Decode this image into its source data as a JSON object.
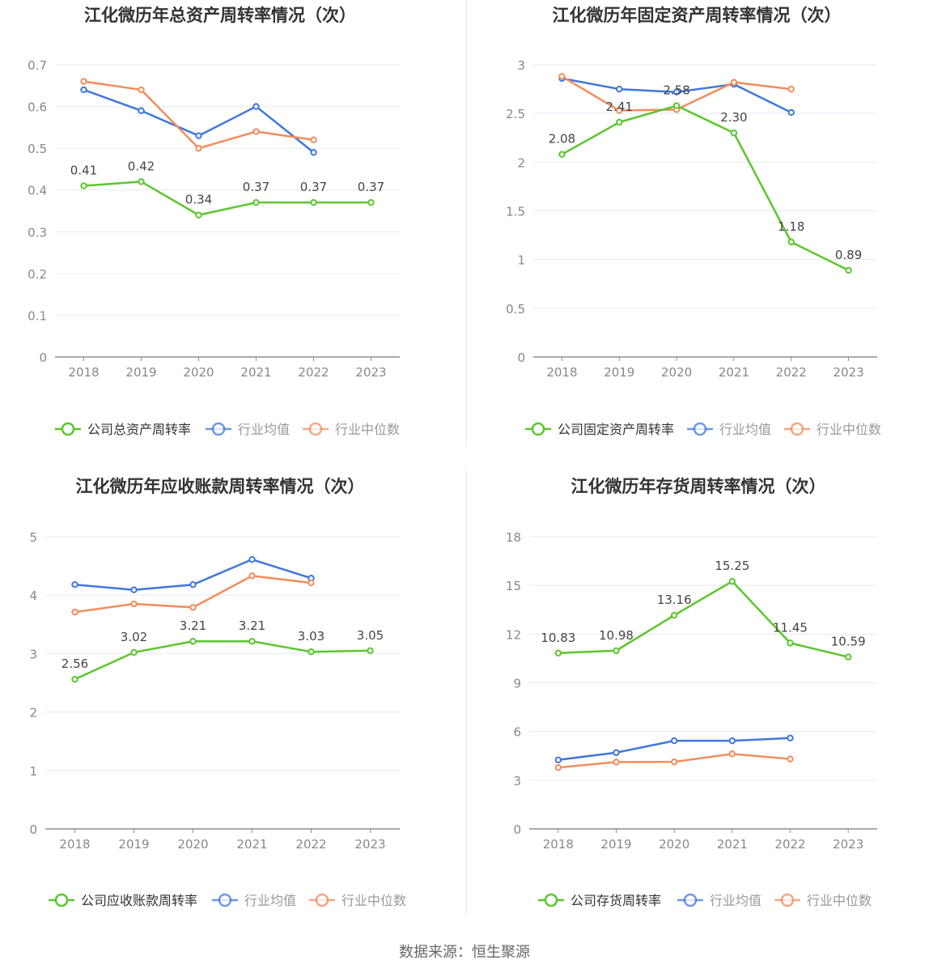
{
  "source_label": "数据来源：恒生聚源",
  "colors": {
    "company": "#5bc62e",
    "avg": "#3f77dd",
    "median": "#f28c5c",
    "grid": "#e6e9f0",
    "axis": "#8e8e9c"
  },
  "chart_data": [
    {
      "type": "line",
      "title": "江化微历年总资产周转率情况（次）",
      "categories": [
        "2018",
        "2019",
        "2020",
        "2021",
        "2022",
        "2023"
      ],
      "yticks": [
        "0",
        "0.1",
        "0.2",
        "0.3",
        "0.4",
        "0.5",
        "0.6",
        "0.7"
      ],
      "ylim": [
        0,
        0.7
      ],
      "series": [
        {
          "name": "公司总资产周转率",
          "color": "#5bc62e",
          "values": [
            0.41,
            0.42,
            0.34,
            0.37,
            0.37,
            0.37
          ],
          "labels": [
            "0.41",
            "0.42",
            "0.34",
            "0.37",
            "0.37",
            "0.37"
          ]
        },
        {
          "name": "行业均值",
          "color": "#3f77dd",
          "values": [
            0.64,
            0.59,
            0.53,
            0.6,
            0.49,
            null
          ]
        },
        {
          "name": "行业中位数",
          "color": "#f28c5c",
          "values": [
            0.66,
            0.64,
            0.5,
            0.54,
            0.52,
            null
          ]
        }
      ]
    },
    {
      "type": "line",
      "title": "江化微历年固定资产周转率情况（次）",
      "categories": [
        "2018",
        "2019",
        "2020",
        "2021",
        "2022",
        "2023"
      ],
      "yticks": [
        "0",
        "0.5",
        "1",
        "1.5",
        "2",
        "2.5",
        "3"
      ],
      "ylim": [
        0,
        3
      ],
      "series": [
        {
          "name": "公司固定资产周转率",
          "color": "#5bc62e",
          "values": [
            2.08,
            2.41,
            2.58,
            2.3,
            1.18,
            0.89
          ],
          "labels": [
            "2.08",
            "2.41",
            "2.58",
            "2.30",
            "1.18",
            "0.89"
          ]
        },
        {
          "name": "行业均值",
          "color": "#3f77dd",
          "values": [
            2.86,
            2.75,
            2.72,
            2.8,
            2.51,
            null
          ]
        },
        {
          "name": "行业中位数",
          "color": "#f28c5c",
          "values": [
            2.88,
            2.53,
            2.54,
            2.82,
            2.75,
            null
          ]
        }
      ]
    },
    {
      "type": "line",
      "title": "江化微历年应收账款周转率情况（次）",
      "categories": [
        "2018",
        "2019",
        "2020",
        "2021",
        "2022",
        "2023"
      ],
      "yticks": [
        "0",
        "1",
        "2",
        "3",
        "4",
        "5"
      ],
      "ylim": [
        0,
        5
      ],
      "series": [
        {
          "name": "公司应收账款周转率",
          "color": "#5bc62e",
          "values": [
            2.56,
            3.02,
            3.21,
            3.21,
            3.03,
            3.05
          ],
          "labels": [
            "2.56",
            "3.02",
            "3.21",
            "3.21",
            "3.03",
            "3.05"
          ]
        },
        {
          "name": "行业均值",
          "color": "#3f77dd",
          "values": [
            4.18,
            4.09,
            4.18,
            4.61,
            4.29,
            null
          ]
        },
        {
          "name": "行业中位数",
          "color": "#f28c5c",
          "values": [
            3.71,
            3.85,
            3.79,
            4.33,
            4.21,
            null
          ]
        }
      ]
    },
    {
      "type": "line",
      "title": "江化微历年存货周转率情况（次）",
      "categories": [
        "2018",
        "2019",
        "2020",
        "2021",
        "2022",
        "2023"
      ],
      "yticks": [
        "0",
        "3",
        "6",
        "9",
        "12",
        "15",
        "18"
      ],
      "ylim": [
        0,
        18
      ],
      "series": [
        {
          "name": "公司存货周转率",
          "color": "#5bc62e",
          "values": [
            10.83,
            10.98,
            13.16,
            15.25,
            11.45,
            10.59
          ],
          "labels": [
            "10.83",
            "10.98",
            "13.16",
            "15.25",
            "11.45",
            "10.59"
          ]
        },
        {
          "name": "行业均值",
          "color": "#3f77dd",
          "values": [
            4.25,
            4.7,
            5.43,
            5.43,
            5.6,
            null
          ]
        },
        {
          "name": "行业中位数",
          "color": "#f28c5c",
          "values": [
            3.78,
            4.12,
            4.13,
            4.62,
            4.31,
            null
          ]
        }
      ]
    }
  ]
}
